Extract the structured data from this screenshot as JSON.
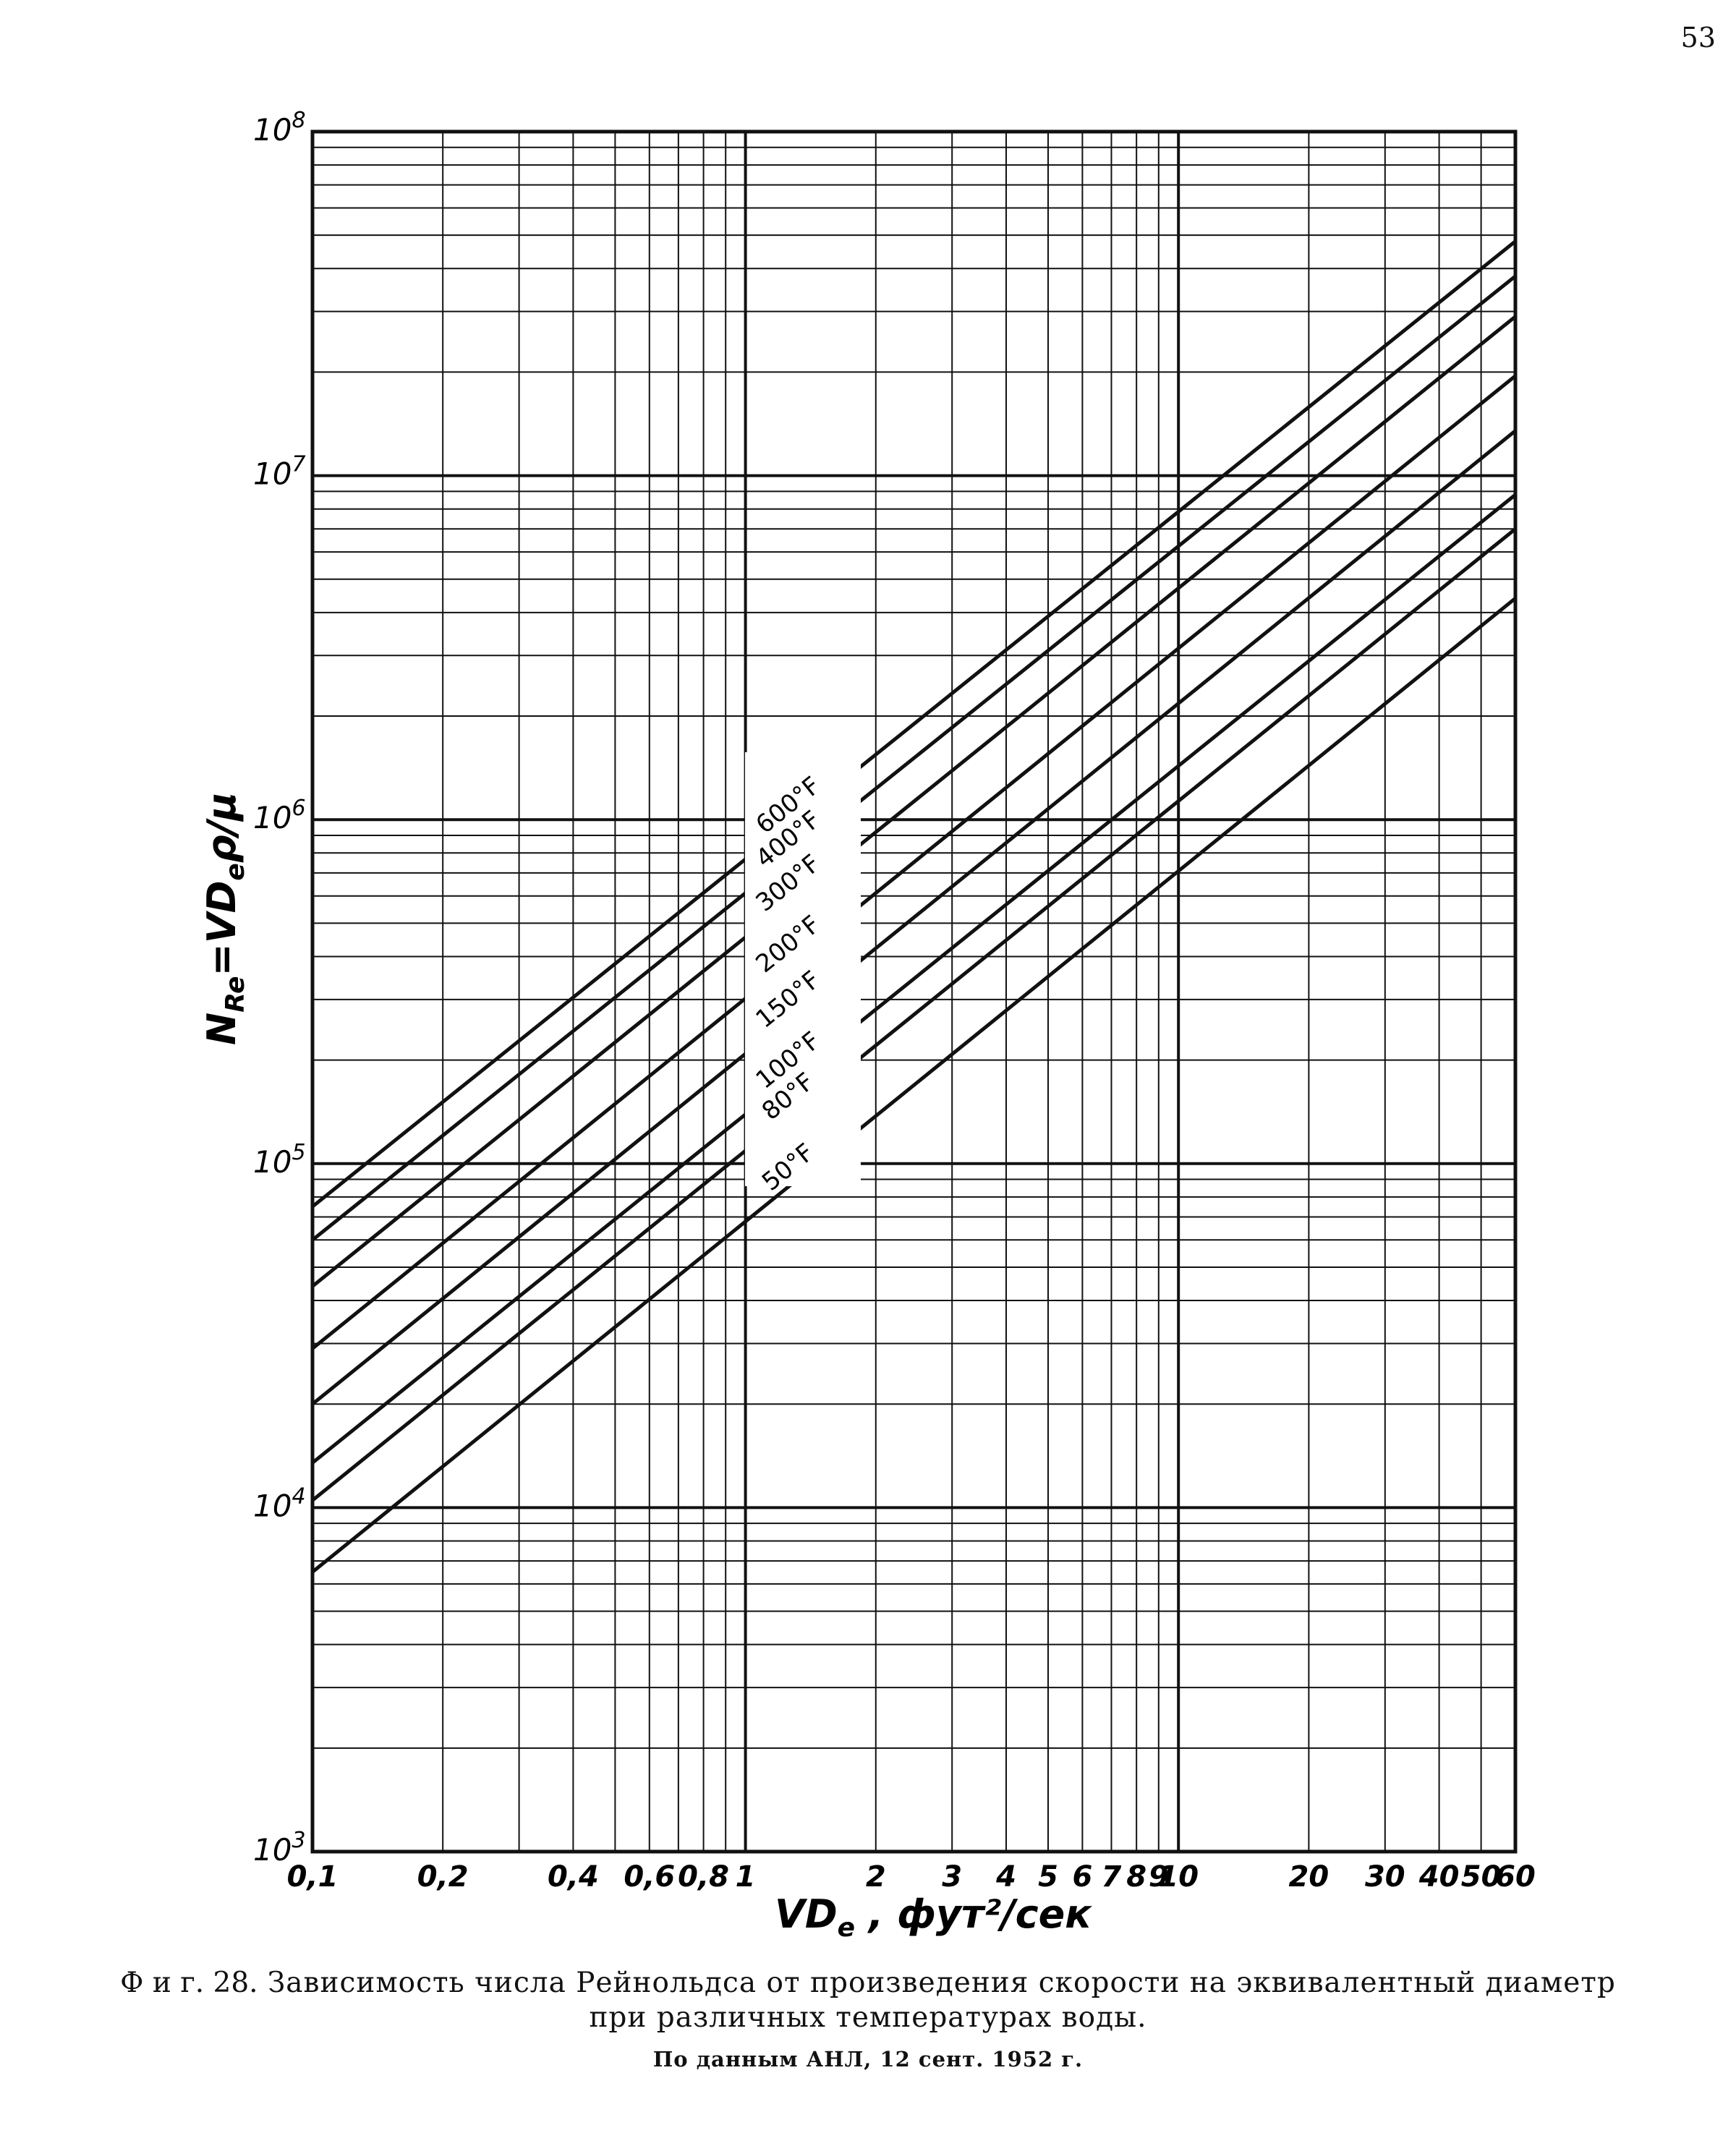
{
  "page_number": "53",
  "caption": {
    "label": "Ф и г. 28.",
    "line1": "Зависимость числа Рейнольдса от произведения скорости на эквивалентный диаметр",
    "line2": "при различных температурах воды.",
    "source": "По данным АНЛ, 12 сент. 1952 г."
  },
  "chart_data": {
    "type": "line",
    "xlabel": "VDe , фут²/сек",
    "ylabel": "NRe=VDeρ/μ",
    "x_scale": "log",
    "y_scale": "log",
    "xlim": [
      0.1,
      60
    ],
    "ylim": [
      1000,
      100000000
    ],
    "grid": true,
    "x_tick_labels": [
      "0,1",
      "0,2",
      "0,4",
      "0,6",
      "0,8",
      "1",
      "2",
      "3",
      "4",
      "5",
      "6",
      "7",
      "8",
      "9",
      "10",
      "20",
      "30",
      "40",
      "50",
      "60"
    ],
    "x_tick_values": [
      0.1,
      0.2,
      0.4,
      0.6,
      0.8,
      1,
      2,
      3,
      4,
      5,
      6,
      7,
      8,
      9,
      10,
      20,
      30,
      40,
      50,
      60
    ],
    "y_tick_labels": [
      {
        "base": "10",
        "exp": "3",
        "value": 1000
      },
      {
        "base": "10",
        "exp": "4",
        "value": 10000
      },
      {
        "base": "10",
        "exp": "5",
        "value": 100000
      },
      {
        "base": "10",
        "exp": "6",
        "value": 1000000
      },
      {
        "base": "10",
        "exp": "7",
        "value": 10000000
      },
      {
        "base": "10",
        "exp": "8",
        "value": 100000000
      }
    ],
    "series": [
      {
        "name": "600°F",
        "x": [
          0.1,
          60
        ],
        "y": [
          75000,
          48000000
        ]
      },
      {
        "name": "400°F",
        "x": [
          0.1,
          60
        ],
        "y": [
          60000,
          38000000
        ]
      },
      {
        "name": "300°F",
        "x": [
          0.1,
          60
        ],
        "y": [
          44000,
          29000000
        ]
      },
      {
        "name": "200°F",
        "x": [
          0.1,
          60
        ],
        "y": [
          29000,
          19500000
        ]
      },
      {
        "name": "150°F",
        "x": [
          0.1,
          60
        ],
        "y": [
          20000,
          13500000
        ]
      },
      {
        "name": "100°F",
        "x": [
          0.1,
          60
        ],
        "y": [
          13500,
          8800000
        ]
      },
      {
        "name": "80°F",
        "x": [
          0.1,
          60
        ],
        "y": [
          10500,
          7000000
        ]
      },
      {
        "name": "50°F",
        "x": [
          0.1,
          60
        ],
        "y": [
          6500,
          4400000
        ]
      }
    ]
  }
}
